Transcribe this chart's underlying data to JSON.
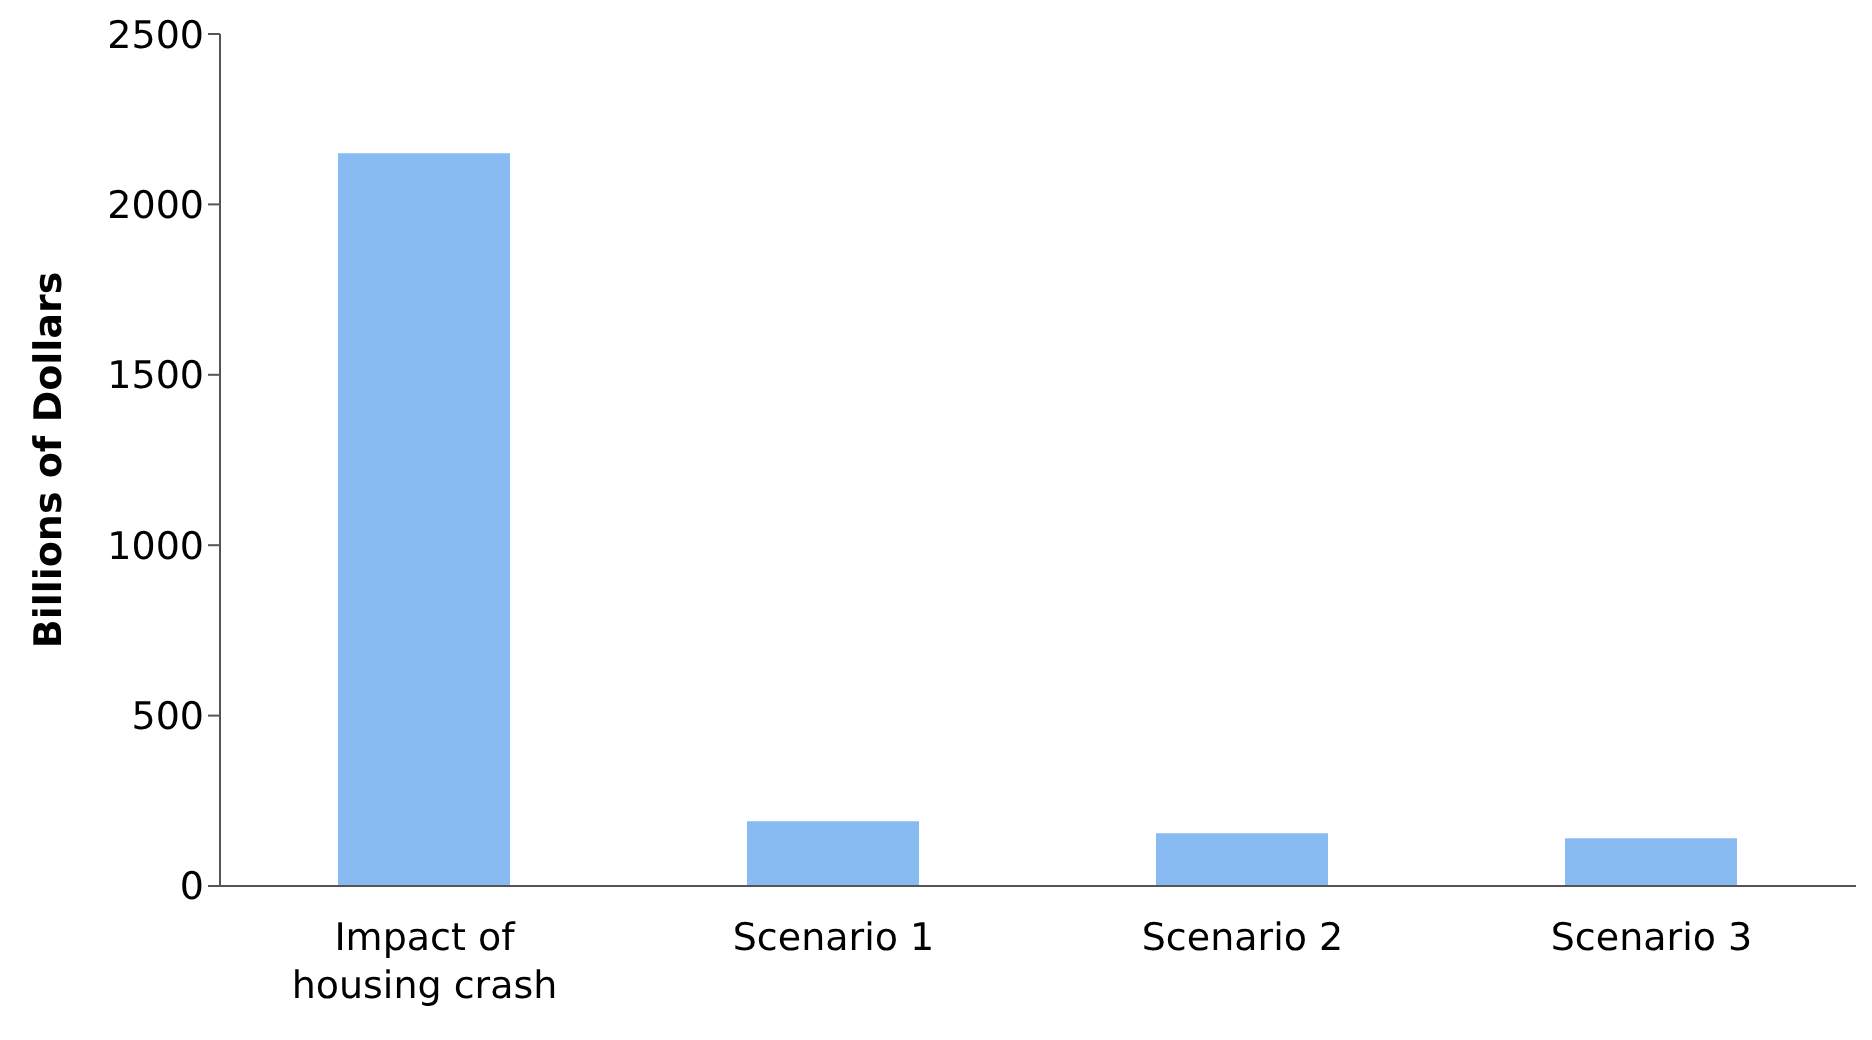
{
  "chart_data": {
    "type": "bar",
    "ylabel": "Billions of Dollars",
    "categories": [
      "Impact of housing crash",
      "Scenario 1",
      "Scenario 2",
      "Scenario 3"
    ],
    "values": [
      2150,
      190,
      155,
      140
    ],
    "color": "#88bbf2",
    "ylim": [
      0,
      2500
    ],
    "yticks": [
      0,
      500,
      1000,
      1500,
      2000,
      2500
    ],
    "grid": false
  }
}
